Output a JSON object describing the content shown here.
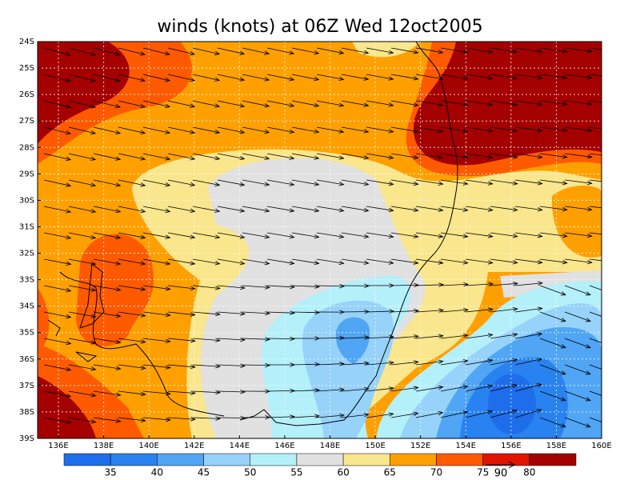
{
  "map": {
    "title": "winds (knots) at 06Z Wed 12oct2005",
    "lat_labels": [
      "24S",
      "25S",
      "26S",
      "27S",
      "28S",
      "29S",
      "30S",
      "31S",
      "32S",
      "33S",
      "34S",
      "35S",
      "36S",
      "37S",
      "38S",
      "39S"
    ],
    "lon_labels": [
      "136E",
      "138E",
      "140E",
      "142E",
      "144E",
      "146E",
      "148E",
      "150E",
      "152E",
      "154E",
      "156E",
      "158E",
      "160E"
    ]
  },
  "colorbar": {
    "labels": [
      "35",
      "40",
      "45",
      "50",
      "55",
      "60",
      "65",
      "70",
      "75",
      "80"
    ],
    "colors": [
      "#1e6eeb",
      "#2882f0",
      "#50a5f5",
      "#96d2fa",
      "#b4f0fa",
      "#e1e1e1",
      "#fae68c",
      "#ffa000",
      "#ff5a00",
      "#e11400",
      "#a50000"
    ]
  },
  "reference_vector": {
    "label": "90"
  }
}
